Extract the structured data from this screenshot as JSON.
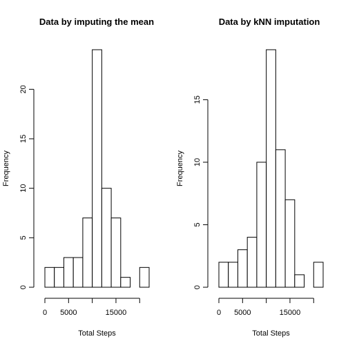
{
  "chart_data": [
    {
      "type": "bar",
      "title": "Data by imputing the mean",
      "xlabel": "Total Steps",
      "ylabel": "Frequency",
      "bin_edges": [
        0,
        2000,
        4000,
        6000,
        8000,
        10000,
        12000,
        14000,
        16000,
        18000,
        20000,
        22000
      ],
      "values": [
        2,
        2,
        3,
        3,
        7,
        24,
        10,
        7,
        1,
        0,
        2
      ],
      "xticks": [
        0,
        5000,
        10000,
        15000,
        20000
      ],
      "xtick_labels": [
        "0",
        "5000",
        "",
        "15000",
        ""
      ],
      "yticks": [
        0,
        5,
        10,
        15,
        20
      ],
      "ytick_labels": [
        "0",
        "5",
        "10",
        "15",
        "20"
      ],
      "ylim": [
        0,
        24
      ],
      "grid": false
    },
    {
      "type": "bar",
      "title": "Data by kNN imputation",
      "xlabel": "Total Steps",
      "ylabel": "Frequency",
      "bin_edges": [
        0,
        2000,
        4000,
        6000,
        8000,
        10000,
        12000,
        14000,
        16000,
        18000,
        20000,
        22000
      ],
      "values": [
        2,
        2,
        3,
        4,
        10,
        19,
        11,
        7,
        1,
        0,
        2
      ],
      "xticks": [
        0,
        5000,
        10000,
        15000,
        20000
      ],
      "xtick_labels": [
        "0",
        "5000",
        "",
        "15000",
        ""
      ],
      "yticks": [
        0,
        5,
        10,
        15
      ],
      "ytick_labels": [
        "0",
        "5",
        "10",
        "15"
      ],
      "ylim": [
        0,
        19
      ],
      "grid": false
    }
  ]
}
